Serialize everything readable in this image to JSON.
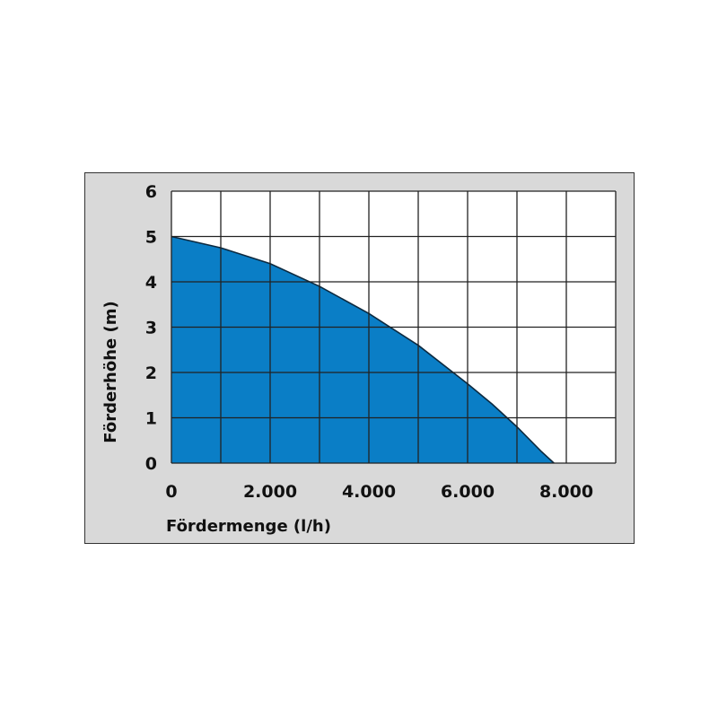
{
  "chart_data": {
    "type": "area",
    "xlabel": "Fördermenge (l/h)",
    "ylabel": "Förderhöhe (m)",
    "xlim": [
      0,
      9000
    ],
    "ylim": [
      0,
      6
    ],
    "x_grid_step": 1000,
    "y_grid_step": 1,
    "xticks": [
      0,
      2000,
      4000,
      6000,
      8000
    ],
    "xtick_labels": [
      "0",
      "2.000",
      "4.000",
      "6.000",
      "8.000"
    ],
    "yticks": [
      0,
      1,
      2,
      3,
      4,
      5,
      6
    ],
    "ytick_labels": [
      "0",
      "1",
      "2",
      "3",
      "4",
      "5",
      "6"
    ],
    "grid": true,
    "series": [
      {
        "x": [
          0,
          1000,
          2000,
          3000,
          4000,
          5000,
          6000,
          6500,
          7000,
          7500,
          7750
        ],
        "values": [
          5.0,
          4.75,
          4.4,
          3.9,
          3.3,
          2.6,
          1.75,
          1.3,
          0.8,
          0.25,
          0
        ],
        "color": "#0a7ec6",
        "line_color": "#0d2a40"
      }
    ]
  },
  "colors": {
    "panel_background": "#d9d9d9",
    "plot_background": "#ffffff",
    "grid": "#222222"
  }
}
